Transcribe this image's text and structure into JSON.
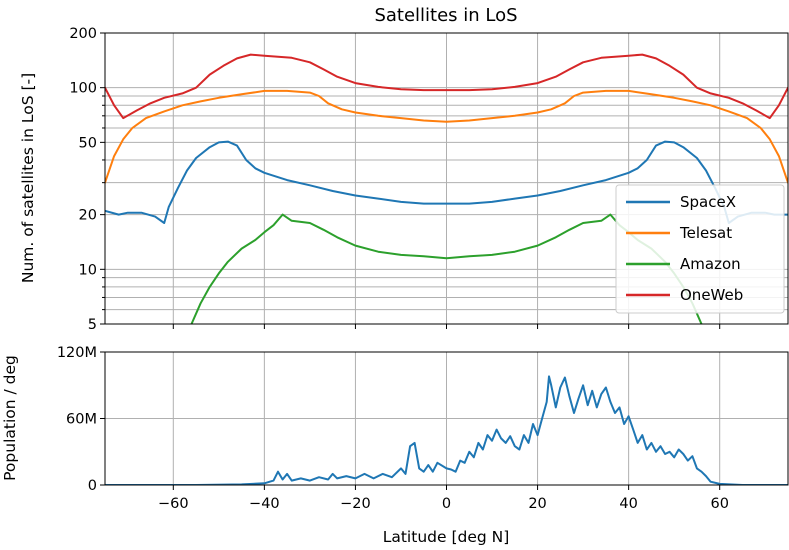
{
  "chart_data": [
    {
      "type": "line",
      "title": "Satellites in LoS",
      "xlabel": "",
      "ylabel": "Num. of satellites in LoS [-]",
      "yscale": "log",
      "xlim": [
        -75,
        75
      ],
      "ylim": [
        5,
        200
      ],
      "x_ticks": [
        -60,
        -40,
        -20,
        0,
        20,
        40,
        60
      ],
      "y_ticks": [
        5,
        10,
        20,
        50,
        100,
        200
      ],
      "y_tick_labels": [
        "5",
        "10",
        "20",
        "50",
        "100",
        "200"
      ],
      "grid": true,
      "legend_position": "lower-right",
      "series": [
        {
          "name": "SpaceX",
          "color": "#1f77b4",
          "points": [
            [
              -75,
              21
            ],
            [
              -72,
              20
            ],
            [
              -70,
              20.5
            ],
            [
              -67,
              20.5
            ],
            [
              -64,
              19.5
            ],
            [
              -62,
              18
            ],
            [
              -61,
              22
            ],
            [
              -59,
              28
            ],
            [
              -57,
              35
            ],
            [
              -55,
              41
            ],
            [
              -52,
              47
            ],
            [
              -50,
              50
            ],
            [
              -48,
              50.5
            ],
            [
              -46,
              48
            ],
            [
              -44,
              40
            ],
            [
              -42,
              36
            ],
            [
              -40,
              34
            ],
            [
              -35,
              31
            ],
            [
              -30,
              29
            ],
            [
              -25,
              27
            ],
            [
              -20,
              25.5
            ],
            [
              -15,
              24.5
            ],
            [
              -10,
              23.5
            ],
            [
              -5,
              23
            ],
            [
              0,
              23
            ],
            [
              5,
              23
            ],
            [
              10,
              23.5
            ],
            [
              15,
              24.5
            ],
            [
              20,
              25.5
            ],
            [
              25,
              27
            ],
            [
              30,
              29
            ],
            [
              35,
              31
            ],
            [
              40,
              34
            ],
            [
              42,
              36
            ],
            [
              44,
              40
            ],
            [
              46,
              48
            ],
            [
              48,
              50.5
            ],
            [
              50,
              50
            ],
            [
              52,
              47
            ],
            [
              55,
              41
            ],
            [
              57,
              35
            ],
            [
              59,
              28
            ],
            [
              61,
              22
            ],
            [
              62,
              18
            ],
            [
              64,
              19.5
            ],
            [
              67,
              20.5
            ],
            [
              70,
              20.5
            ],
            [
              72,
              20
            ],
            [
              75,
              20
            ]
          ]
        },
        {
          "name": "Telesat",
          "color": "#ff7f0e",
          "points": [
            [
              -75,
              30
            ],
            [
              -73,
              42
            ],
            [
              -71,
              52
            ],
            [
              -69,
              60
            ],
            [
              -66,
              68
            ],
            [
              -62,
              74
            ],
            [
              -58,
              80
            ],
            [
              -54,
              84
            ],
            [
              -50,
              88
            ],
            [
              -45,
              92
            ],
            [
              -40,
              96
            ],
            [
              -35,
              96
            ],
            [
              -30,
              94
            ],
            [
              -28,
              90
            ],
            [
              -26,
              82
            ],
            [
              -23,
              76
            ],
            [
              -20,
              73
            ],
            [
              -15,
              70
            ],
            [
              -10,
              68
            ],
            [
              -5,
              66
            ],
            [
              0,
              65
            ],
            [
              5,
              66
            ],
            [
              10,
              68
            ],
            [
              15,
              70
            ],
            [
              20,
              73
            ],
            [
              23,
              76
            ],
            [
              26,
              82
            ],
            [
              28,
              90
            ],
            [
              30,
              94
            ],
            [
              35,
              96
            ],
            [
              40,
              96
            ],
            [
              45,
              92
            ],
            [
              50,
              88
            ],
            [
              54,
              84
            ],
            [
              58,
              80
            ],
            [
              62,
              74
            ],
            [
              66,
              68
            ],
            [
              69,
              60
            ],
            [
              71,
              52
            ],
            [
              73,
              42
            ],
            [
              75,
              30
            ]
          ]
        },
        {
          "name": "Amazon",
          "color": "#2ca02c",
          "points": [
            [
              -56,
              5
            ],
            [
              -54,
              6.5
            ],
            [
              -52,
              8
            ],
            [
              -50,
              9.5
            ],
            [
              -48,
              11
            ],
            [
              -45,
              13
            ],
            [
              -42,
              14.5
            ],
            [
              -40,
              16
            ],
            [
              -38,
              17.5
            ],
            [
              -36,
              20
            ],
            [
              -34,
              18.5
            ],
            [
              -30,
              18
            ],
            [
              -27,
              16.5
            ],
            [
              -24,
              15
            ],
            [
              -20,
              13.5
            ],
            [
              -15,
              12.5
            ],
            [
              -10,
              12
            ],
            [
              -5,
              11.8
            ],
            [
              0,
              11.5
            ],
            [
              5,
              11.8
            ],
            [
              10,
              12
            ],
            [
              15,
              12.5
            ],
            [
              20,
              13.5
            ],
            [
              24,
              15
            ],
            [
              27,
              16.5
            ],
            [
              30,
              18
            ],
            [
              34,
              18.5
            ],
            [
              36,
              20
            ],
            [
              38,
              17.5
            ],
            [
              40,
              16
            ],
            [
              42,
              14.5
            ],
            [
              45,
              13
            ],
            [
              48,
              11
            ],
            [
              50,
              9.5
            ],
            [
              52,
              8
            ],
            [
              54,
              6.5
            ],
            [
              56,
              5
            ]
          ]
        },
        {
          "name": "OneWeb",
          "color": "#d62728",
          "points": [
            [
              -75,
              100
            ],
            [
              -73,
              80
            ],
            [
              -71,
              68
            ],
            [
              -68,
              75
            ],
            [
              -65,
              82
            ],
            [
              -62,
              88
            ],
            [
              -58,
              93
            ],
            [
              -55,
              100
            ],
            [
              -52,
              118
            ],
            [
              -49,
              132
            ],
            [
              -46,
              145
            ],
            [
              -43,
              152
            ],
            [
              -40,
              150
            ],
            [
              -37,
              148
            ],
            [
              -34,
              146
            ],
            [
              -30,
              138
            ],
            [
              -27,
              126
            ],
            [
              -24,
              115
            ],
            [
              -20,
              106
            ],
            [
              -15,
              101
            ],
            [
              -10,
              98
            ],
            [
              -5,
              97
            ],
            [
              0,
              97
            ],
            [
              5,
              97
            ],
            [
              10,
              98
            ],
            [
              15,
              101
            ],
            [
              20,
              106
            ],
            [
              24,
              115
            ],
            [
              27,
              126
            ],
            [
              30,
              138
            ],
            [
              34,
              146
            ],
            [
              37,
              148
            ],
            [
              40,
              150
            ],
            [
              43,
              152
            ],
            [
              46,
              145
            ],
            [
              49,
              132
            ],
            [
              52,
              118
            ],
            [
              55,
              100
            ],
            [
              58,
              93
            ],
            [
              62,
              88
            ],
            [
              65,
              82
            ],
            [
              68,
              75
            ],
            [
              71,
              68
            ],
            [
              73,
              80
            ],
            [
              75,
              100
            ]
          ]
        }
      ]
    },
    {
      "type": "line",
      "title": "",
      "xlabel": "Latitude [deg N]",
      "ylabel": "Population / deg",
      "xlim": [
        -75,
        75
      ],
      "ylim": [
        0,
        120
      ],
      "y_unit": "M",
      "x_ticks": [
        -60,
        -40,
        -20,
        0,
        20,
        40,
        60
      ],
      "x_tick_labels": [
        "−60",
        "−40",
        "−20",
        "0",
        "20",
        "40",
        "60"
      ],
      "y_ticks": [
        0,
        60,
        120
      ],
      "y_tick_labels": [
        "0",
        "60M",
        "120M"
      ],
      "grid": true,
      "series": [
        {
          "name": "Population",
          "color": "#1f77b4",
          "points": [
            [
              -75,
              0
            ],
            [
              -55,
              0
            ],
            [
              -45,
              0.5
            ],
            [
              -40,
              1.5
            ],
            [
              -38,
              4
            ],
            [
              -37,
              12
            ],
            [
              -36,
              5
            ],
            [
              -35,
              10
            ],
            [
              -34,
              4
            ],
            [
              -32,
              6
            ],
            [
              -30,
              4
            ],
            [
              -28,
              7
            ],
            [
              -26,
              5
            ],
            [
              -25,
              10
            ],
            [
              -24,
              6
            ],
            [
              -22,
              8
            ],
            [
              -20,
              6
            ],
            [
              -18,
              10
            ],
            [
              -16,
              6
            ],
            [
              -14,
              10
            ],
            [
              -12,
              7
            ],
            [
              -10,
              15
            ],
            [
              -9,
              10
            ],
            [
              -8,
              35
            ],
            [
              -7,
              38
            ],
            [
              -6,
              15
            ],
            [
              -5,
              12
            ],
            [
              -4,
              18
            ],
            [
              -3,
              12
            ],
            [
              -2,
              20
            ],
            [
              0,
              15
            ],
            [
              1,
              14
            ],
            [
              2,
              12
            ],
            [
              3,
              22
            ],
            [
              4,
              20
            ],
            [
              5,
              30
            ],
            [
              6,
              25
            ],
            [
              7,
              38
            ],
            [
              8,
              32
            ],
            [
              9,
              45
            ],
            [
              10,
              40
            ],
            [
              11,
              50
            ],
            [
              12,
              42
            ],
            [
              13,
              38
            ],
            [
              14,
              44
            ],
            [
              15,
              35
            ],
            [
              16,
              32
            ],
            [
              17,
              45
            ],
            [
              18,
              38
            ],
            [
              19,
              55
            ],
            [
              20,
              45
            ],
            [
              21,
              60
            ],
            [
              22,
              75
            ],
            [
              22.5,
              98
            ],
            [
              23,
              90
            ],
            [
              24,
              70
            ],
            [
              25,
              88
            ],
            [
              26,
              97
            ],
            [
              27,
              80
            ],
            [
              28,
              65
            ],
            [
              29,
              78
            ],
            [
              30,
              90
            ],
            [
              31,
              72
            ],
            [
              32,
              85
            ],
            [
              33,
              70
            ],
            [
              34,
              82
            ],
            [
              35,
              88
            ],
            [
              36,
              75
            ],
            [
              37,
              65
            ],
            [
              38,
              70
            ],
            [
              39,
              55
            ],
            [
              40,
              62
            ],
            [
              41,
              50
            ],
            [
              42,
              38
            ],
            [
              43,
              45
            ],
            [
              44,
              32
            ],
            [
              45,
              38
            ],
            [
              46,
              30
            ],
            [
              47,
              35
            ],
            [
              48,
              28
            ],
            [
              49,
              30
            ],
            [
              50,
              25
            ],
            [
              51,
              32
            ],
            [
              52,
              28
            ],
            [
              53,
              22
            ],
            [
              54,
              26
            ],
            [
              55,
              15
            ],
            [
              56,
              12
            ],
            [
              57,
              8
            ],
            [
              58,
              3
            ],
            [
              60,
              1
            ],
            [
              65,
              0
            ],
            [
              75,
              0
            ]
          ]
        }
      ]
    }
  ]
}
